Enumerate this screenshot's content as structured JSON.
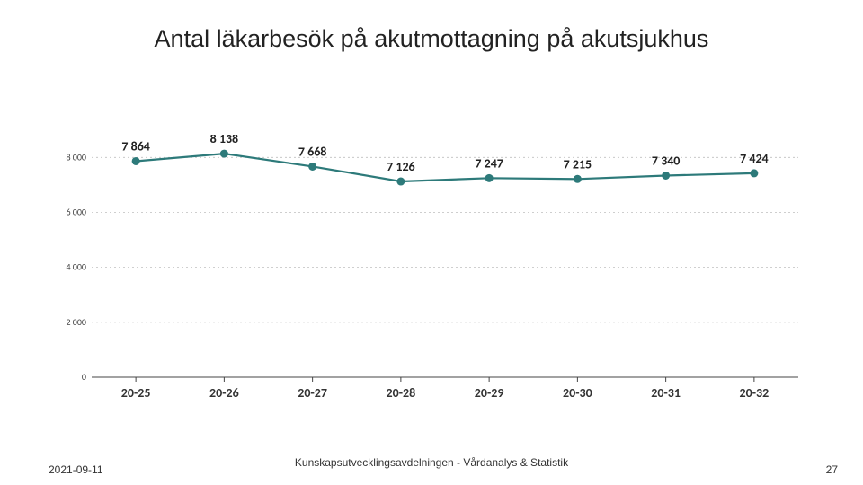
{
  "title": "Antal läkarbesök på akutmottagning på akutsjukhus",
  "footer": {
    "date": "2021-09-11",
    "center": "Kunskapsutvecklingsavdelningen - Vårdanalys & Statistik",
    "page": "27"
  },
  "chart": {
    "type": "line",
    "background_color": "#ffffff",
    "ylim": [
      0,
      8500
    ],
    "ytick_step": 2000,
    "yticks": [
      0,
      2000,
      4000,
      6000,
      8000
    ],
    "ytick_labels": [
      "0",
      "2 000",
      "4 000",
      "6 000",
      "8 000"
    ],
    "grid_color": "#bfbfbf",
    "axis_color": "#444444",
    "xticks": [
      "20-25",
      "20-26",
      "20-27",
      "20-28",
      "20-29",
      "20-30",
      "20-31",
      "20-32"
    ],
    "series": {
      "values": [
        7864,
        8138,
        7668,
        7126,
        7247,
        7215,
        7340,
        7424
      ],
      "labels": [
        "7 864",
        "8 138",
        "7 668",
        "7 126",
        "7 247",
        "7 215",
        "7 340",
        "7 424"
      ],
      "line_color": "#2d7a7a",
      "line_width": 2.2,
      "marker_color": "#2d7a7a",
      "marker_radius": 4.5,
      "marker_type": "circle"
    },
    "label_fontsize": 14,
    "label_fontweight": 700,
    "ylabel_fontsize": 10,
    "xlabel_fontsize": 14,
    "xlabel_fontweight": 700
  }
}
